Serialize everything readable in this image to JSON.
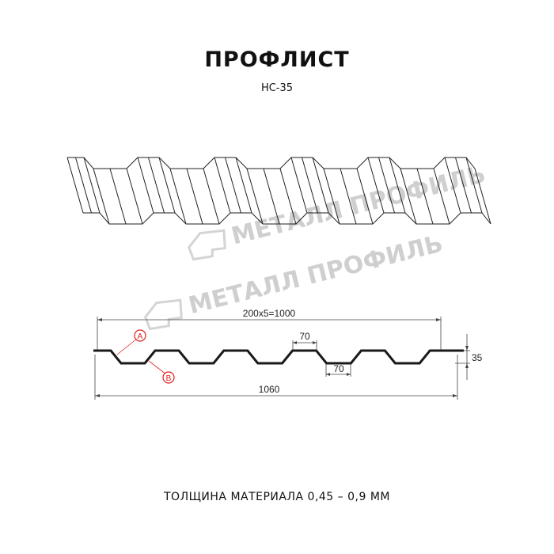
{
  "title": "ПРОФЛИСТ",
  "model": "НС-35",
  "watermark": "МЕТАЛЛ ПРОФИЛЬ",
  "dimensions": {
    "pitch_total": "200x5=1000",
    "total_width": "1060",
    "top_flat": "70",
    "bottom_flat": "70",
    "height": "35"
  },
  "markers": {
    "a": "A",
    "b": "B"
  },
  "footer": "ТОЛЩИНА МАТЕРИАЛА 0,45 – 0,9 ММ",
  "colors": {
    "line": "#1a1a1a",
    "marker": "#e02020",
    "watermark": "#cfcfcf"
  }
}
